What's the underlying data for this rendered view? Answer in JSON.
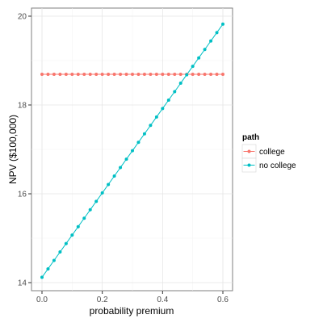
{
  "chart_data": {
    "type": "line",
    "xlabel": "probability premium",
    "ylabel": "NPV ($100,000)",
    "xlim": [
      0,
      0.6
    ],
    "ylim": [
      14,
      20
    ],
    "x_ticks": [
      0.0,
      0.2,
      0.4,
      0.6
    ],
    "x_tick_labels": [
      "0.0",
      "0.2",
      "0.4",
      "0.6"
    ],
    "y_ticks": [
      14,
      16,
      18,
      20
    ],
    "y_tick_labels": [
      "14",
      "16",
      "18",
      "20"
    ],
    "grid": true,
    "legend": {
      "title": "path",
      "position": "right"
    },
    "x": [
      0.0,
      0.02,
      0.04,
      0.06,
      0.08,
      0.1,
      0.12,
      0.14,
      0.16,
      0.18,
      0.2,
      0.22,
      0.24,
      0.26,
      0.28,
      0.3,
      0.32,
      0.34,
      0.36,
      0.38,
      0.4,
      0.42,
      0.44,
      0.46,
      0.48,
      0.5,
      0.52,
      0.54,
      0.56,
      0.58,
      0.6
    ],
    "series": [
      {
        "name": "college",
        "color": "#F8766D",
        "values": [
          18.69,
          18.69,
          18.69,
          18.69,
          18.69,
          18.69,
          18.69,
          18.69,
          18.69,
          18.69,
          18.69,
          18.69,
          18.69,
          18.69,
          18.69,
          18.69,
          18.69,
          18.69,
          18.69,
          18.69,
          18.69,
          18.69,
          18.69,
          18.69,
          18.69,
          18.69,
          18.69,
          18.69,
          18.69,
          18.69,
          18.69
        ]
      },
      {
        "name": "no college",
        "color": "#00BFC4",
        "values": [
          14.12,
          14.31,
          14.5,
          14.69,
          14.88,
          15.07,
          15.26,
          15.45,
          15.64,
          15.83,
          16.02,
          16.21,
          16.4,
          16.59,
          16.78,
          16.97,
          17.16,
          17.35,
          17.54,
          17.73,
          17.92,
          18.11,
          18.3,
          18.49,
          18.68,
          18.87,
          19.06,
          19.25,
          19.44,
          19.63,
          19.82
        ]
      }
    ]
  }
}
